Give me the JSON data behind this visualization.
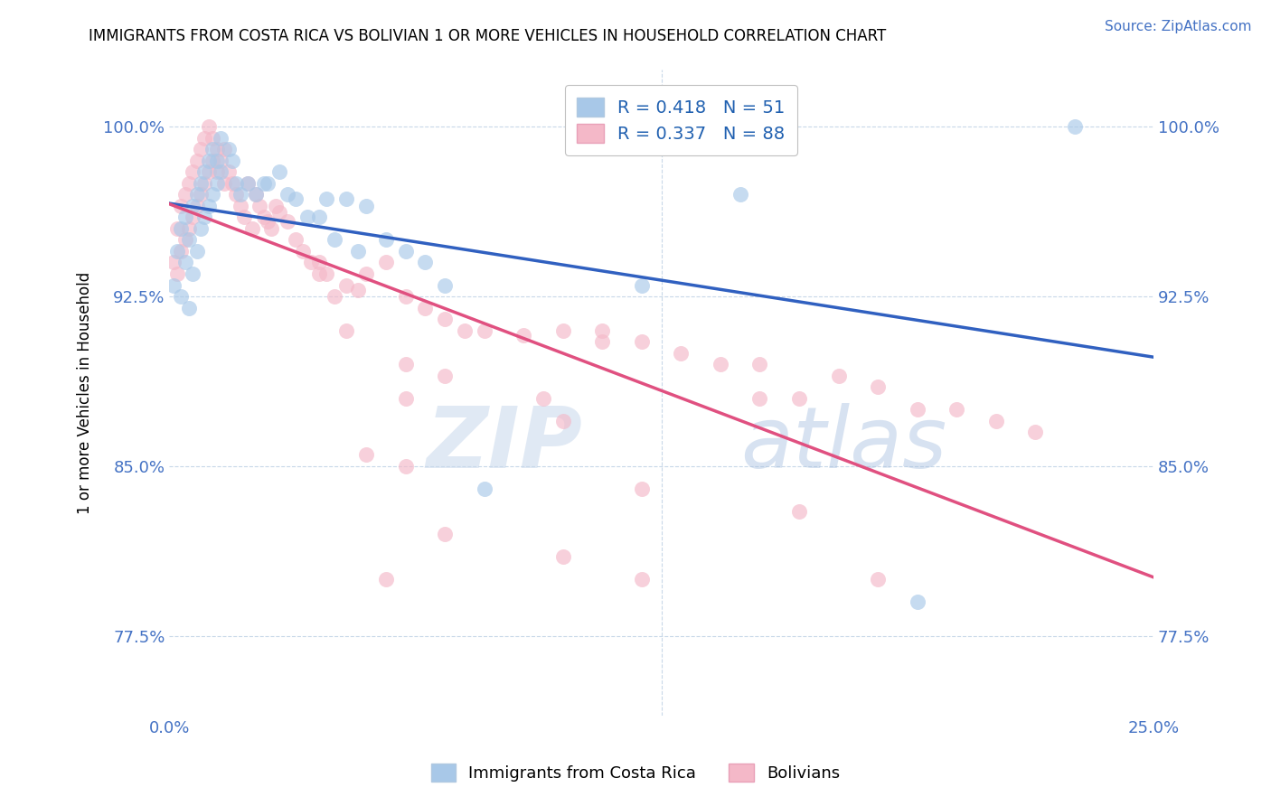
{
  "title": "IMMIGRANTS FROM COSTA RICA VS BOLIVIAN 1 OR MORE VEHICLES IN HOUSEHOLD CORRELATION CHART",
  "source": "Source: ZipAtlas.com",
  "xmin": 0.0,
  "xmax": 0.25,
  "ymin": 0.74,
  "ymax": 1.025,
  "ylabel": "1 or more Vehicles in Household",
  "legend_entry1": "R = 0.418   N = 51",
  "legend_entry2": "R = 0.337   N = 88",
  "legend_label1": "Immigrants from Costa Rica",
  "legend_label2": "Bolivians",
  "color_blue": "#a8c8e8",
  "color_pink": "#f4b8c8",
  "color_blue_line": "#3060c0",
  "color_pink_line": "#e05080",
  "watermark_zip": "ZIP",
  "watermark_atlas": "atlas",
  "ytick_vals": [
    0.775,
    0.85,
    0.925,
    1.0
  ],
  "ytick_labels": [
    "77.5%",
    "85.0%",
    "92.5%",
    "100.0%"
  ],
  "xtick_vals": [
    0.0,
    0.25
  ],
  "xtick_labels": [
    "0.0%",
    "25.0%"
  ],
  "blue_x": [
    0.001,
    0.002,
    0.003,
    0.003,
    0.004,
    0.004,
    0.005,
    0.005,
    0.006,
    0.006,
    0.007,
    0.007,
    0.008,
    0.008,
    0.009,
    0.009,
    0.01,
    0.01,
    0.011,
    0.011,
    0.012,
    0.012,
    0.013,
    0.013,
    0.015,
    0.016,
    0.017,
    0.018,
    0.02,
    0.022,
    0.024,
    0.025,
    0.028,
    0.03,
    0.032,
    0.035,
    0.038,
    0.04,
    0.042,
    0.045,
    0.048,
    0.05,
    0.055,
    0.06,
    0.065,
    0.07,
    0.08,
    0.12,
    0.145,
    0.19,
    0.23
  ],
  "blue_y": [
    0.93,
    0.945,
    0.955,
    0.925,
    0.96,
    0.94,
    0.95,
    0.92,
    0.965,
    0.935,
    0.97,
    0.945,
    0.975,
    0.955,
    0.98,
    0.96,
    0.985,
    0.965,
    0.99,
    0.97,
    0.985,
    0.975,
    0.995,
    0.98,
    0.99,
    0.985,
    0.975,
    0.97,
    0.975,
    0.97,
    0.975,
    0.975,
    0.98,
    0.97,
    0.968,
    0.96,
    0.96,
    0.968,
    0.95,
    0.968,
    0.945,
    0.965,
    0.95,
    0.945,
    0.94,
    0.93,
    0.84,
    0.93,
    0.97,
    0.79,
    1.0
  ],
  "pink_x": [
    0.001,
    0.002,
    0.002,
    0.003,
    0.003,
    0.004,
    0.004,
    0.005,
    0.005,
    0.006,
    0.006,
    0.007,
    0.007,
    0.008,
    0.008,
    0.009,
    0.009,
    0.01,
    0.01,
    0.011,
    0.011,
    0.012,
    0.012,
    0.013,
    0.014,
    0.014,
    0.015,
    0.016,
    0.017,
    0.018,
    0.019,
    0.02,
    0.021,
    0.022,
    0.023,
    0.024,
    0.025,
    0.026,
    0.027,
    0.028,
    0.03,
    0.032,
    0.034,
    0.036,
    0.038,
    0.04,
    0.042,
    0.045,
    0.048,
    0.05,
    0.055,
    0.06,
    0.065,
    0.07,
    0.075,
    0.08,
    0.09,
    0.1,
    0.11,
    0.12,
    0.13,
    0.14,
    0.15,
    0.16,
    0.17,
    0.18,
    0.19,
    0.2,
    0.21,
    0.22,
    0.05,
    0.06,
    0.06,
    0.12,
    0.055,
    0.1,
    0.038,
    0.045,
    0.06,
    0.07,
    0.095,
    0.15,
    0.07,
    0.1,
    0.12,
    0.11,
    0.16,
    0.18
  ],
  "pink_y": [
    0.94,
    0.955,
    0.935,
    0.965,
    0.945,
    0.97,
    0.95,
    0.975,
    0.955,
    0.98,
    0.96,
    0.985,
    0.965,
    0.99,
    0.97,
    0.995,
    0.975,
    1.0,
    0.98,
    0.995,
    0.985,
    0.99,
    0.98,
    0.985,
    0.975,
    0.99,
    0.98,
    0.975,
    0.97,
    0.965,
    0.96,
    0.975,
    0.955,
    0.97,
    0.965,
    0.96,
    0.958,
    0.955,
    0.965,
    0.962,
    0.958,
    0.95,
    0.945,
    0.94,
    0.94,
    0.935,
    0.925,
    0.93,
    0.928,
    0.935,
    0.94,
    0.925,
    0.92,
    0.915,
    0.91,
    0.91,
    0.908,
    0.91,
    0.905,
    0.905,
    0.9,
    0.895,
    0.895,
    0.88,
    0.89,
    0.885,
    0.875,
    0.875,
    0.87,
    0.865,
    0.855,
    0.85,
    0.88,
    0.84,
    0.8,
    0.87,
    0.935,
    0.91,
    0.895,
    0.89,
    0.88,
    0.88,
    0.82,
    0.81,
    0.8,
    0.91,
    0.83,
    0.8
  ]
}
